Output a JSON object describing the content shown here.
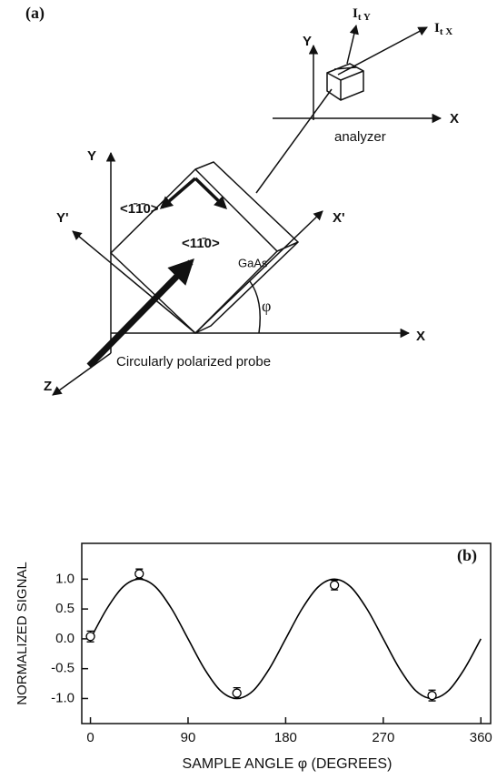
{
  "diagram": {
    "panel_label": "(a)",
    "analyzer": {
      "label": "analyzer",
      "y_axis": "Y",
      "x_axis": "X",
      "out_y": "I",
      "out_y_sub": "t Y",
      "out_x": "I",
      "out_x_sub": "t X"
    },
    "sample": {
      "label": "GaAs",
      "y_axis": "Y",
      "x_axis": "X",
      "z_axis": "Z",
      "y_prime": "Y'",
      "x_prime": "X'",
      "dir1": "<1̄1̄0>",
      "dir2": "<11̄0>",
      "angle": "φ",
      "probe": "Circularly polarized probe"
    }
  },
  "chart_data": {
    "type": "line",
    "label": "(b)",
    "y_label": "NORMALIZED SIGNAL",
    "x_label": "SAMPLE ANGLE φ (DEGREES)",
    "xlim": [
      -8,
      369
    ],
    "ylim": [
      -1.42,
      1.6
    ],
    "xticks": [
      0,
      90,
      180,
      270,
      360
    ],
    "yticks": [
      {
        "value": 1,
        "label": "1.0"
      },
      {
        "value": 0.5,
        "label": "0.5"
      },
      {
        "value": 0,
        "label": "0.0"
      },
      {
        "value": -0.5,
        "label": "-0.5"
      },
      {
        "value": -1,
        "label": "-1.0"
      }
    ],
    "series": [
      {
        "type": "line",
        "color": "#000000",
        "x": [
          0,
          15,
          30,
          45,
          60,
          75,
          90,
          105,
          120,
          135,
          150,
          165,
          180,
          195,
          210,
          225,
          240,
          255,
          270,
          285,
          300,
          315,
          330,
          345,
          360
        ],
        "values": [
          0,
          0.5,
          0.87,
          1,
          0.87,
          0.5,
          0,
          -0.5,
          -0.87,
          -1,
          -0.87,
          -0.5,
          0,
          0.5,
          0.87,
          1,
          0.87,
          0.5,
          0,
          -0.5,
          -0.87,
          -1,
          -0.87,
          -0.5,
          0
        ]
      },
      {
        "type": "scatter",
        "color": "#000000",
        "x": [
          0,
          45,
          135,
          225,
          315
        ],
        "values": [
          0.04,
          1.09,
          -0.91,
          0.9,
          -0.95
        ],
        "errors": [
          0.09,
          0.08,
          0.09,
          0.08,
          0.09
        ]
      }
    ]
  }
}
